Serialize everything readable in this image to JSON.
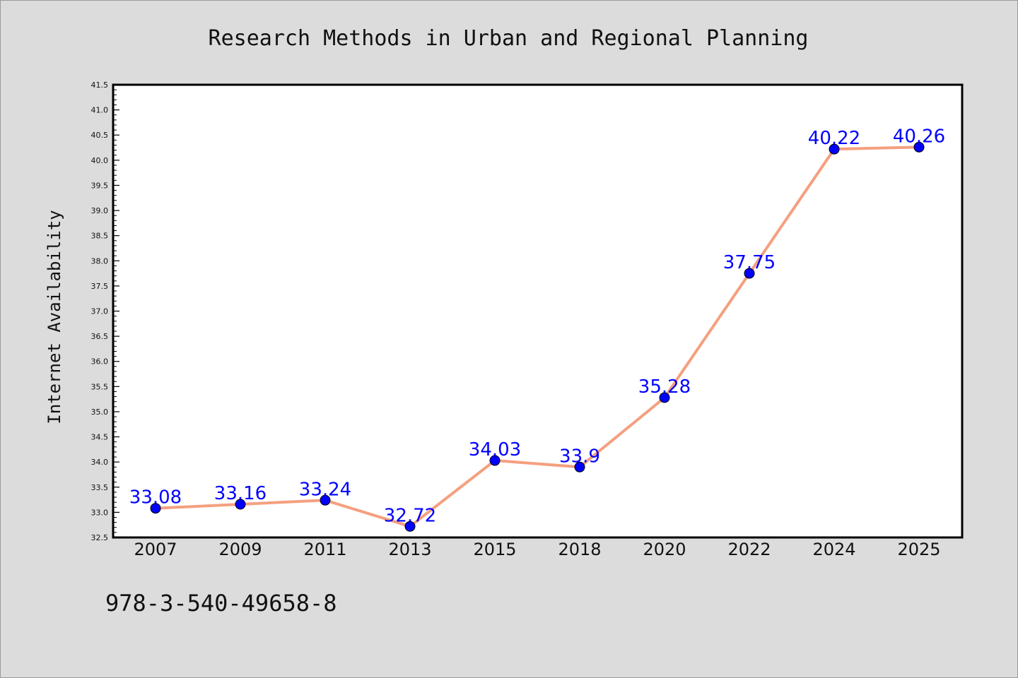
{
  "footnote": "978-3-540-49658-8",
  "colors": {
    "background": "#dcdcdc",
    "plot_background": "#ffffff",
    "line": "#f4a07f",
    "marker": "#0000ff",
    "data_label": "#0000ff"
  },
  "chart_data": {
    "type": "line",
    "title": "Research Methods in Urban and Regional Planning",
    "xlabel": "",
    "ylabel": "Internet Availability",
    "categories": [
      "2007",
      "2009",
      "2011",
      "2013",
      "2015",
      "2018",
      "2020",
      "2022",
      "2024",
      "2025"
    ],
    "series": [
      {
        "values": [
          33.08,
          33.16,
          33.24,
          32.72,
          34.03,
          33.9,
          35.28,
          37.75,
          40.22,
          40.26
        ]
      }
    ],
    "data_labels": [
      "33.08",
      "33.16",
      "33.24",
      "32.72",
      "34.03",
      "33.9",
      "35.28",
      "37.75",
      "40.22",
      "40.26"
    ],
    "ylim": [
      32.5,
      41.5
    ],
    "yticks": [
      "32.5",
      "33.0",
      "33.5",
      "34.0",
      "34.5",
      "35.0",
      "35.5",
      "36.0",
      "36.5",
      "37.0",
      "37.5",
      "38.0",
      "38.5",
      "39.0",
      "39.5",
      "40.0",
      "40.5",
      "41.0",
      "41.5"
    ],
    "grid": false,
    "legend": "none",
    "marker": "circle"
  }
}
